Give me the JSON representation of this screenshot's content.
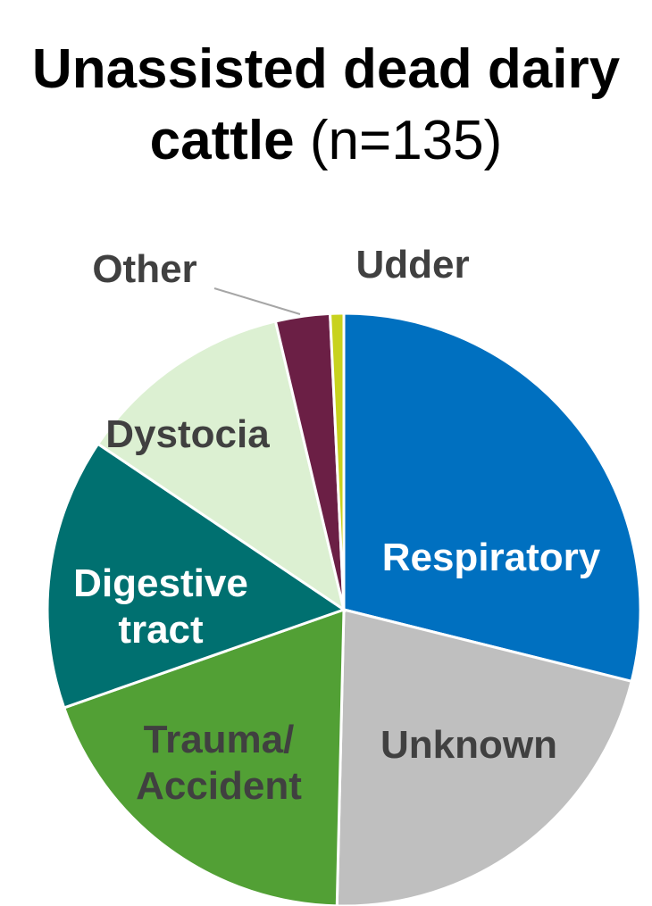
{
  "chart_data": {
    "type": "pie",
    "title": "Unassisted dead dairy cattle",
    "subtitle": "(n=135)",
    "categories": [
      "Respiratory",
      "Unknown",
      "Trauma/ Accident",
      "Digestive tract",
      "Dystocia",
      "Other",
      "Udder"
    ],
    "values": [
      39,
      29,
      26,
      20,
      16,
      4,
      1
    ],
    "colors": [
      "#0070c0",
      "#bfbfbf",
      "#52a035",
      "#007070",
      "#dcf0d2",
      "#6b1f45",
      "#c8d21e"
    ]
  }
}
